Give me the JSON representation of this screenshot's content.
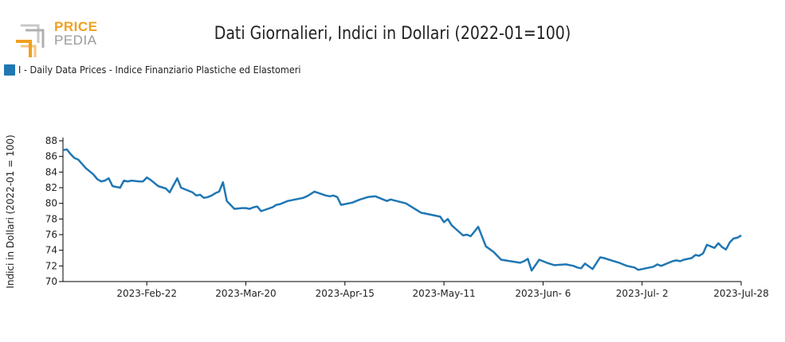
{
  "logo": {
    "top": "PRICE",
    "bottom": "PEDIA"
  },
  "chart_data": {
    "type": "line",
    "title": "Dati Giornalieri, Indici in Dollari (2022-01=100)",
    "ylabel": "Indici in Dollari (2022-01 = 100)",
    "xlabel": "",
    "legend_position": "top-left",
    "grid": false,
    "ylim": [
      70,
      88
    ],
    "yticks": [
      70,
      72,
      74,
      76,
      78,
      80,
      82,
      84,
      86,
      88
    ],
    "xlim": [
      "2023-01-31",
      "2023-07-28"
    ],
    "xticks": [
      {
        "date": "2023-02-22",
        "label": "2023-Feb-22"
      },
      {
        "date": "2023-03-20",
        "label": "2023-Mar-20"
      },
      {
        "date": "2023-04-15",
        "label": "2023-Apr-15"
      },
      {
        "date": "2023-05-11",
        "label": "2023-May-11"
      },
      {
        "date": "2023-06-06",
        "label": "2023-Jun- 6"
      },
      {
        "date": "2023-07-02",
        "label": "2023-Jul- 2"
      },
      {
        "date": "2023-07-28",
        "label": "2023-Jul-28"
      }
    ],
    "series": [
      {
        "name": "I - Daily Data Prices - Indice Finanziario Plastiche ed Elastomeri",
        "color": "#1f77b4",
        "x": [
          "2023-01-31",
          "2023-02-01",
          "2023-02-02",
          "2023-02-03",
          "2023-02-04",
          "2023-02-06",
          "2023-02-08",
          "2023-02-09",
          "2023-02-10",
          "2023-02-11",
          "2023-02-12",
          "2023-02-13",
          "2023-02-15",
          "2023-02-16",
          "2023-02-17",
          "2023-02-18",
          "2023-02-20",
          "2023-02-21",
          "2023-02-22",
          "2023-02-23",
          "2023-02-25",
          "2023-02-27",
          "2023-02-28",
          "2023-03-01",
          "2023-03-02",
          "2023-03-03",
          "2023-03-06",
          "2023-03-07",
          "2023-03-08",
          "2023-03-09",
          "2023-03-10",
          "2023-03-11",
          "2023-03-12",
          "2023-03-13",
          "2023-03-14",
          "2023-03-15",
          "2023-03-17",
          "2023-03-19",
          "2023-03-20",
          "2023-03-21",
          "2023-03-22",
          "2023-03-23",
          "2023-03-24",
          "2023-03-27",
          "2023-03-28",
          "2023-03-29",
          "2023-03-31",
          "2023-04-03",
          "2023-04-04",
          "2023-04-05",
          "2023-04-06",
          "2023-04-07",
          "2023-04-10",
          "2023-04-11",
          "2023-04-12",
          "2023-04-13",
          "2023-04-14",
          "2023-04-17",
          "2023-04-18",
          "2023-04-19",
          "2023-04-21",
          "2023-04-23",
          "2023-04-26",
          "2023-04-27",
          "2023-05-01",
          "2023-05-03",
          "2023-05-04",
          "2023-05-05",
          "2023-05-06",
          "2023-05-07",
          "2023-05-08",
          "2023-05-09",
          "2023-05-10",
          "2023-05-11",
          "2023-05-12",
          "2023-05-13",
          "2023-05-16",
          "2023-05-17",
          "2023-05-18",
          "2023-05-20",
          "2023-05-22",
          "2023-05-24",
          "2023-05-26",
          "2023-05-31",
          "2023-06-01",
          "2023-06-02",
          "2023-06-03",
          "2023-06-05",
          "2023-06-07",
          "2023-06-09",
          "2023-06-12",
          "2023-06-14",
          "2023-06-15",
          "2023-06-16",
          "2023-06-17",
          "2023-06-19",
          "2023-06-21",
          "2023-06-22",
          "2023-06-26",
          "2023-06-27",
          "2023-06-28",
          "2023-06-29",
          "2023-06-30",
          "2023-07-01",
          "2023-07-03",
          "2023-07-04",
          "2023-07-05",
          "2023-07-06",
          "2023-07-07",
          "2023-07-10",
          "2023-07-11",
          "2023-07-12",
          "2023-07-13",
          "2023-07-15",
          "2023-07-16",
          "2023-07-17",
          "2023-07-18",
          "2023-07-19",
          "2023-07-21",
          "2023-07-22",
          "2023-07-23",
          "2023-07-24",
          "2023-07-25",
          "2023-07-26",
          "2023-07-27",
          "2023-07-28"
        ],
        "y": [
          86.8,
          86.9,
          86.3,
          85.8,
          85.6,
          84.5,
          83.7,
          83.1,
          82.8,
          82.9,
          83.2,
          82.2,
          82.0,
          82.9,
          82.8,
          82.9,
          82.8,
          82.8,
          83.3,
          83.0,
          82.2,
          81.9,
          81.4,
          82.3,
          83.2,
          82.0,
          81.4,
          81.0,
          81.1,
          80.7,
          80.8,
          81.0,
          81.3,
          81.5,
          82.7,
          80.3,
          79.3,
          79.4,
          79.4,
          79.3,
          79.5,
          79.6,
          79.0,
          79.5,
          79.8,
          79.9,
          80.3,
          80.6,
          80.7,
          80.9,
          81.2,
          81.5,
          81.0,
          80.9,
          81.0,
          80.8,
          79.8,
          80.1,
          80.3,
          80.5,
          80.8,
          80.9,
          80.3,
          80.5,
          80.0,
          79.4,
          79.1,
          78.8,
          78.7,
          78.6,
          78.5,
          78.4,
          78.3,
          77.6,
          78.0,
          77.2,
          75.9,
          76.0,
          75.8,
          77.0,
          74.5,
          73.8,
          72.8,
          72.4,
          72.6,
          72.9,
          71.4,
          72.8,
          72.4,
          72.1,
          72.2,
          72.0,
          71.8,
          71.7,
          72.3,
          71.6,
          73.1,
          73.0,
          72.4,
          72.2,
          72.0,
          71.9,
          71.8,
          71.5,
          71.7,
          71.8,
          71.9,
          72.2,
          72.0,
          72.6,
          72.7,
          72.6,
          72.8,
          73.0,
          73.4,
          73.3,
          73.6,
          74.7,
          74.3,
          74.9,
          74.4,
          74.1,
          75.0,
          75.5,
          75.6,
          75.9
        ]
      }
    ]
  }
}
